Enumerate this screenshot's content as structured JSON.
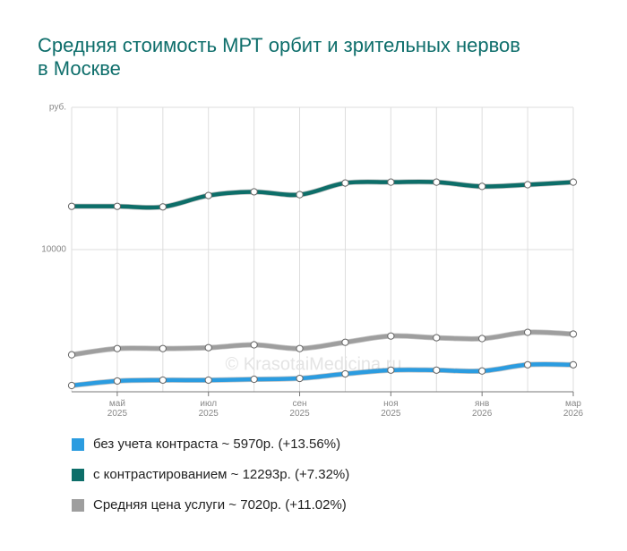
{
  "chart_data": {
    "type": "line",
    "title": "Средняя стоимость МРТ орбит и зрительных нервов в Москве",
    "watermark": "© KrasotaiMedicina.ru",
    "categories": [
      null,
      "май 2025",
      null,
      "июл 2025",
      null,
      "сен 2025",
      null,
      "ноя 2025",
      null,
      "янв 2026",
      null,
      "мар 2026"
    ],
    "ylim": [
      5000,
      15000
    ],
    "yticks": [
      10000,
      {
        "value": 15000,
        "label": "руб."
      }
    ],
    "grid": true,
    "series": [
      {
        "name": "без учета контраста ~ 5970р. (+13.56%)",
        "color": "#2b9ce0",
        "values": [
          5220,
          5380,
          5410,
          5410,
          5440,
          5470,
          5630,
          5760,
          5760,
          5730,
          5950,
          5950
        ]
      },
      {
        "name": "с контрастированием ~ 12293р. (+7.32%)",
        "color": "#0d6e69",
        "values": [
          11520,
          11520,
          11500,
          11900,
          12030,
          11930,
          12340,
          12370,
          12370,
          12220,
          12280,
          12370
        ]
      },
      {
        "name": "Средняя цена услуги ~ 7020р. (+11.02%)",
        "color": "#9e9e9e",
        "values": [
          6300,
          6520,
          6520,
          6550,
          6650,
          6520,
          6740,
          6960,
          6900,
          6870,
          7090,
          7030
        ]
      }
    ]
  }
}
